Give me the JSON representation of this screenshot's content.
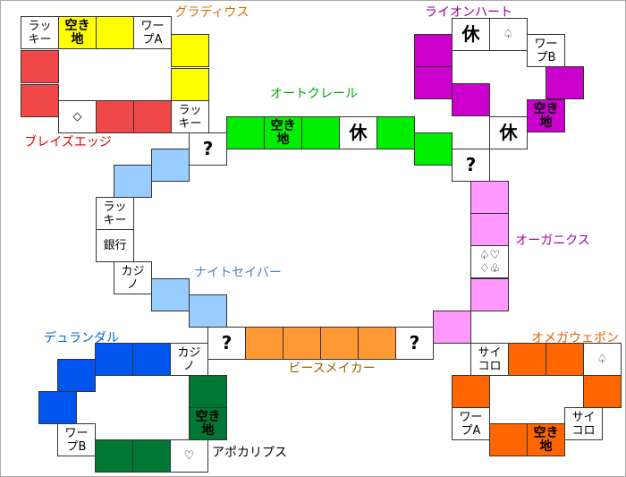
{
  "districts": [
    {
      "name": "グラディウス",
      "name_color": "#d07000",
      "color": "#ffff00"
    },
    {
      "name": "ライオンハート",
      "name_color": "#990099",
      "color": "#cc00cc"
    },
    {
      "name": "オートクレール",
      "name_color": "#00aa00",
      "color": "#00ee00"
    },
    {
      "name": "ブレイズエッジ",
      "name_color": "#dd0000",
      "color": "#f04848"
    },
    {
      "name": "オーガニクス",
      "name_color": "#aa00aa",
      "color": "#ff99ff"
    },
    {
      "name": "ナイトセイバー",
      "name_color": "#4f81bd",
      "color": "#99ccff"
    },
    {
      "name": "デュランダル",
      "name_color": "#0066cc",
      "color": "#0055ee"
    },
    {
      "name": "ビースメイカー",
      "name_color": "#996600",
      "color": "#ff9933"
    },
    {
      "name": "オメガウェポン",
      "name_color": "#e06000",
      "color": "#ff6600"
    },
    {
      "name": "アポカリプス",
      "name_color": "#000000",
      "color": "#007733"
    }
  ],
  "squares": [
    "ラッキー",
    "空き地",
    "ワープA",
    "ラッキー",
    "◇",
    "休",
    "♤",
    "ワープB",
    "空き地",
    "休",
    "?",
    "空き地",
    "休",
    "?",
    "ラッキー",
    "銀行",
    "カジノ",
    "♤♡♢♧",
    "?",
    "?",
    "カジノ",
    "ワープB",
    "空き地",
    "♡",
    "サイコロ",
    "♤",
    "ワープA",
    "サイコロ",
    "空き地"
  ]
}
